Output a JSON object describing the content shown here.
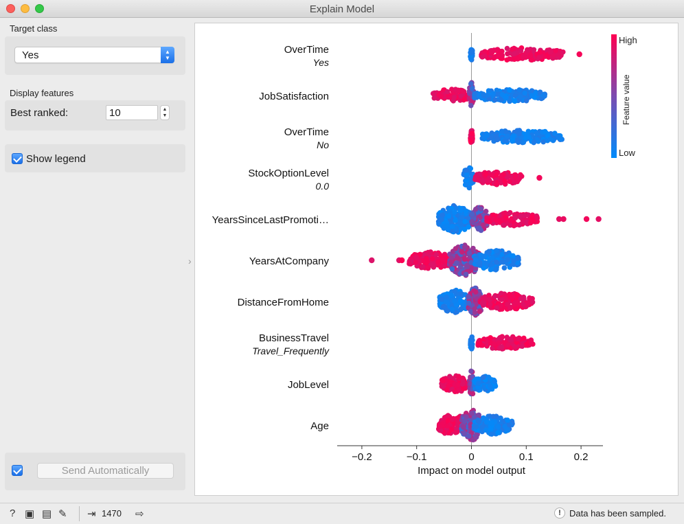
{
  "window": {
    "title": "Explain Model"
  },
  "controls": {
    "target_class": {
      "label": "Target class",
      "value": "Yes"
    },
    "display_features": {
      "label": "Display features",
      "best_ranked_label": "Best ranked:",
      "best_ranked_value": "10"
    },
    "show_legend": {
      "label": "Show legend",
      "checked": true
    },
    "send_automatically": {
      "label": "Send Automatically",
      "checked": true
    }
  },
  "status": {
    "count": "1470",
    "message": "Data has been sampled.",
    "warning_icon": "!"
  },
  "colors": {
    "high": "#ff0052",
    "low": "#008bfb",
    "axis": "#333333",
    "zero_line": "#999999"
  },
  "chart_data": {
    "type": "scatter",
    "subtype": "beeswarm",
    "xlabel": "Impact on model output",
    "xlim": [
      -0.245,
      0.24
    ],
    "xticks": [
      -0.2,
      -0.1,
      0,
      0.1,
      0.2
    ],
    "xtick_labels": [
      "−0.2",
      "−0.1",
      "0",
      "0.1",
      "0.2"
    ],
    "legend": {
      "title": "Feature value",
      "high": "High",
      "low": "Low",
      "position": "top-right"
    },
    "features": [
      {
        "name": "OverTime",
        "value": "Yes",
        "clusters": [
          {
            "min": -0.002,
            "max": 0.002,
            "spread": 0.45,
            "n": 28,
            "color": "low"
          },
          {
            "min": 0.018,
            "max": 0.168,
            "spread": 0.42,
            "n": 150,
            "color": "high"
          }
        ],
        "outliers": [
          {
            "x": 0.197,
            "color": "high"
          }
        ]
      },
      {
        "name": "JobSatisfaction",
        "value": "",
        "clusters": [
          {
            "min": -0.07,
            "max": -0.003,
            "spread": 0.42,
            "n": 90,
            "color": "high"
          },
          {
            "min": -0.004,
            "max": 0.004,
            "spread": 0.85,
            "n": 30,
            "color": "mid"
          },
          {
            "min": 0.005,
            "max": 0.135,
            "spread": 0.4,
            "n": 140,
            "color": "low"
          }
        ],
        "outliers": []
      },
      {
        "name": "OverTime",
        "value": "No",
        "clusters": [
          {
            "min": -0.002,
            "max": 0.002,
            "spread": 0.45,
            "n": 28,
            "color": "high"
          },
          {
            "min": 0.018,
            "max": 0.168,
            "spread": 0.42,
            "n": 150,
            "color": "low"
          }
        ],
        "outliers": []
      },
      {
        "name": "StockOptionLevel",
        "value": "0.0",
        "clusters": [
          {
            "min": -0.015,
            "max": 0.004,
            "spread": 0.7,
            "n": 36,
            "color": "low"
          },
          {
            "min": 0.006,
            "max": 0.092,
            "spread": 0.45,
            "n": 120,
            "color": "high"
          }
        ],
        "outliers": [
          {
            "x": 0.124,
            "color": "high"
          }
        ]
      },
      {
        "name": "YearsSinceLastPromoti…",
        "value": "",
        "clusters": [
          {
            "min": -0.06,
            "max": 0.0,
            "spread": 0.9,
            "n": 170,
            "color": "low"
          },
          {
            "min": 0.0,
            "max": 0.03,
            "spread": 0.8,
            "n": 80,
            "color": "mid"
          },
          {
            "min": 0.028,
            "max": 0.122,
            "spread": 0.45,
            "n": 110,
            "color": "high"
          }
        ],
        "outliers": [
          {
            "x": 0.16,
            "color": "high"
          },
          {
            "x": 0.168,
            "color": "high"
          },
          {
            "x": 0.21,
            "color": "high"
          },
          {
            "x": 0.232,
            "color": "high"
          }
        ]
      },
      {
        "name": "YearsAtCompany",
        "value": "",
        "clusters": [
          {
            "min": -0.115,
            "max": -0.035,
            "spread": 0.55,
            "n": 110,
            "color": "high"
          },
          {
            "min": -0.04,
            "max": 0.015,
            "spread": 1.0,
            "n": 170,
            "color": "mid"
          },
          {
            "min": 0.005,
            "max": 0.086,
            "spread": 0.65,
            "n": 130,
            "color": "low"
          }
        ],
        "outliers": [
          {
            "x": -0.182,
            "color": "high"
          },
          {
            "x": -0.132,
            "color": "high"
          },
          {
            "x": -0.127,
            "color": "high"
          }
        ]
      },
      {
        "name": "DistanceFromHome",
        "value": "",
        "clusters": [
          {
            "min": -0.058,
            "max": -0.003,
            "spread": 0.75,
            "n": 120,
            "color": "low"
          },
          {
            "min": -0.006,
            "max": 0.02,
            "spread": 0.95,
            "n": 80,
            "color": "mid"
          },
          {
            "min": 0.015,
            "max": 0.112,
            "spread": 0.55,
            "n": 150,
            "color": "high"
          }
        ],
        "outliers": []
      },
      {
        "name": "BusinessTravel",
        "value": "Travel_Frequently",
        "clusters": [
          {
            "min": -0.002,
            "max": 0.002,
            "spread": 0.45,
            "n": 28,
            "color": "low"
          },
          {
            "min": 0.012,
            "max": 0.112,
            "spread": 0.42,
            "n": 140,
            "color": "high"
          }
        ],
        "outliers": []
      },
      {
        "name": "JobLevel",
        "value": "",
        "clusters": [
          {
            "min": -0.055,
            "max": -0.004,
            "spread": 0.55,
            "n": 90,
            "color": "high"
          },
          {
            "min": -0.005,
            "max": 0.005,
            "spread": 0.85,
            "n": 30,
            "color": "mid"
          },
          {
            "min": 0.004,
            "max": 0.044,
            "spread": 0.5,
            "n": 80,
            "color": "low"
          }
        ],
        "outliers": []
      },
      {
        "name": "Age",
        "value": "",
        "clusters": [
          {
            "min": -0.06,
            "max": -0.005,
            "spread": 0.7,
            "n": 120,
            "color": "high"
          },
          {
            "min": -0.018,
            "max": 0.018,
            "spread": 1.0,
            "n": 110,
            "color": "mid"
          },
          {
            "min": 0.004,
            "max": 0.075,
            "spread": 0.6,
            "n": 120,
            "color": "low"
          }
        ],
        "outliers": []
      }
    ]
  }
}
